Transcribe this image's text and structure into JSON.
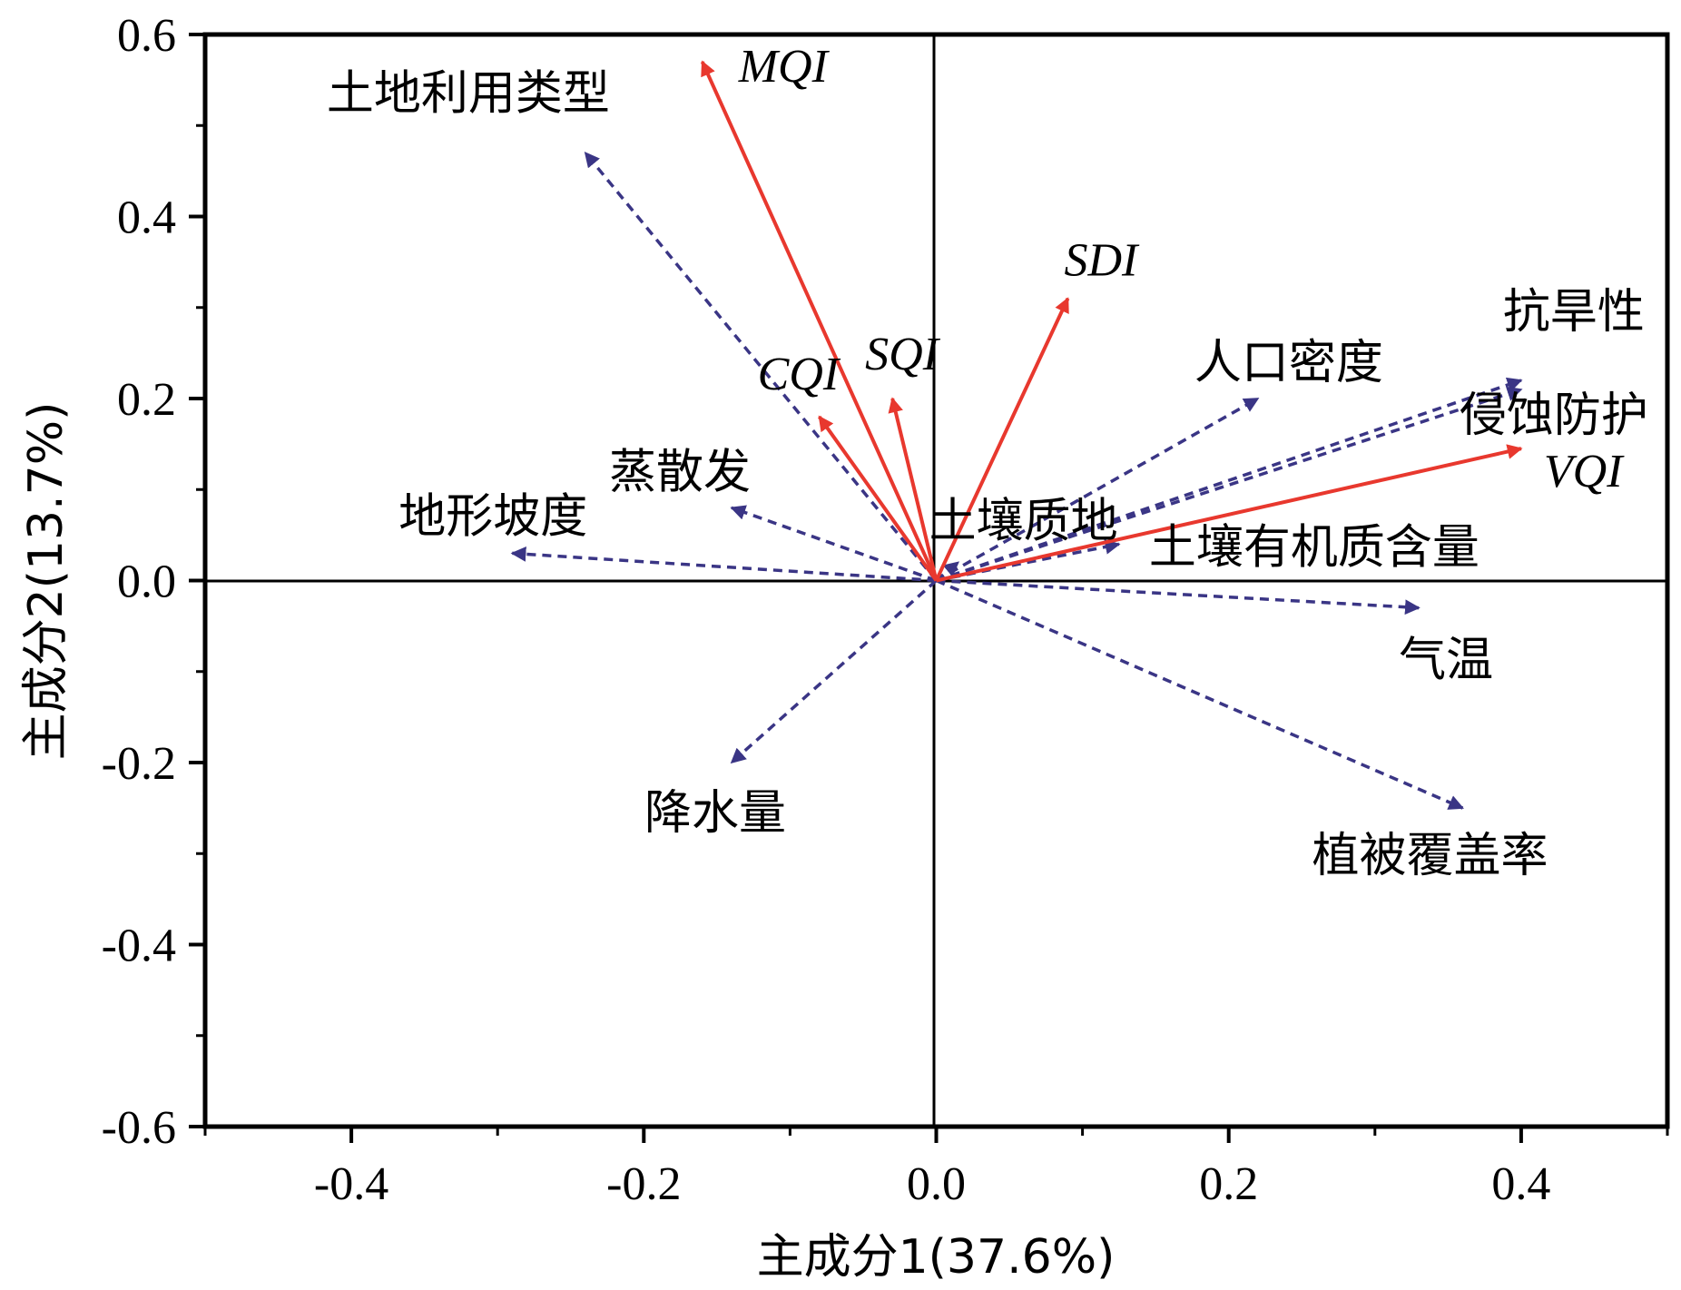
{
  "chart_data": {
    "type": "scatter",
    "xlabel": "主成分1(37.6%)",
    "ylabel": "主成分2(13.7%)",
    "xlim": [
      -0.5,
      0.5
    ],
    "ylim": [
      -0.6,
      0.6
    ],
    "xticks": [
      "-0.4",
      "-0.2",
      "0.0",
      "0.2",
      "0.4"
    ],
    "xtick_values": [
      -0.4,
      -0.2,
      0.0,
      0.2,
      0.4
    ],
    "yticks": [
      "0.6",
      "0.4",
      "0.2",
      "0.0",
      "-0.2",
      "-0.4",
      "-0.6"
    ],
    "ytick_values": [
      0.6,
      0.4,
      0.2,
      0.0,
      -0.2,
      -0.4,
      -0.6
    ],
    "colors": {
      "index": "#e8382e",
      "driver": "#3a3585"
    },
    "series": [
      {
        "style": "solid",
        "color": "#e8382e",
        "vectors": [
          {
            "label": "MQI",
            "x": -0.16,
            "y": 0.57
          },
          {
            "label": "SDI",
            "x": 0.09,
            "y": 0.31
          },
          {
            "label": "CQI",
            "x": -0.08,
            "y": 0.18
          },
          {
            "label": "SQI",
            "x": -0.03,
            "y": 0.2
          },
          {
            "label": "VQI",
            "x": 0.4,
            "y": 0.145
          }
        ]
      },
      {
        "style": "dashed",
        "color": "#3a3585",
        "vectors": [
          {
            "label": "土地利用类型",
            "x": -0.24,
            "y": 0.47
          },
          {
            "label": "蒸散发",
            "x": -0.14,
            "y": 0.08
          },
          {
            "label": "地形坡度",
            "x": -0.29,
            "y": 0.03
          },
          {
            "label": "降水量",
            "x": -0.14,
            "y": -0.2
          },
          {
            "label": "人口密度",
            "x": 0.22,
            "y": 0.2
          },
          {
            "label": "抗旱性",
            "x": 0.4,
            "y": 0.22
          },
          {
            "label": "侵蚀防护",
            "x": 0.4,
            "y": 0.21
          },
          {
            "label": "土壤质地",
            "x": 0.015,
            "y": 0.02
          },
          {
            "label": "土壤有机质含量",
            "x": 0.125,
            "y": 0.04
          },
          {
            "label": "气温",
            "x": 0.33,
            "y": -0.03
          },
          {
            "label": "植被覆盖率",
            "x": 0.36,
            "y": -0.25
          }
        ]
      }
    ]
  }
}
